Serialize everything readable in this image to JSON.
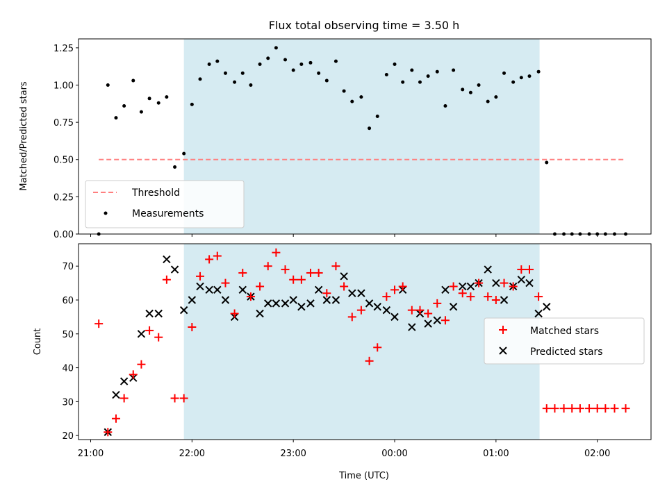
{
  "title": "Flux total observing time = 3.50 h",
  "chart_data": [
    {
      "type": "scatter",
      "ylabel": "Matched/Predicted stars",
      "ylim": [
        0.0,
        1.31
      ],
      "xlim_hours": [
        20.88,
        26.53
      ],
      "yticks": [
        "0.00",
        "0.25",
        "0.50",
        "0.75",
        "1.00",
        "1.25"
      ],
      "ytick_values": [
        0.0,
        0.25,
        0.5,
        0.75,
        1.0,
        1.25
      ],
      "threshold": {
        "name": "Threshold",
        "value": 0.5,
        "x": [
          21.08,
          26.28
        ],
        "color": "#ff7f7f"
      },
      "highlight_span_hours": [
        21.92,
        25.43
      ],
      "highlight_color": "#add8e6",
      "legend": {
        "placement": "lower-left",
        "entries": [
          "Threshold",
          "Measurements"
        ]
      },
      "series": [
        {
          "name": "Measurements",
          "marker": "dot",
          "color": "#000000",
          "x": [
            21.08,
            21.17,
            21.25,
            21.33,
            21.42,
            21.5,
            21.58,
            21.67,
            21.75,
            21.83,
            21.92,
            22.0,
            22.08,
            22.17,
            22.25,
            22.33,
            22.42,
            22.5,
            22.58,
            22.67,
            22.75,
            22.83,
            22.92,
            23.0,
            23.08,
            23.17,
            23.25,
            23.33,
            23.42,
            23.5,
            23.58,
            23.67,
            23.75,
            23.83,
            23.92,
            24.0,
            24.08,
            24.17,
            24.25,
            24.33,
            24.42,
            24.5,
            24.58,
            24.67,
            24.75,
            24.83,
            24.92,
            25.0,
            25.08,
            25.17,
            25.25,
            25.33,
            25.42,
            25.5,
            25.58,
            25.67,
            25.75,
            25.83,
            25.92,
            26.0,
            26.08,
            26.17,
            26.28
          ],
          "y": [
            0.0,
            1.0,
            0.78,
            0.86,
            1.03,
            0.82,
            0.91,
            0.88,
            0.92,
            0.45,
            0.54,
            0.87,
            1.04,
            1.14,
            1.16,
            1.08,
            1.02,
            1.08,
            1.0,
            1.14,
            1.18,
            1.25,
            1.17,
            1.1,
            1.14,
            1.15,
            1.08,
            1.03,
            1.16,
            0.96,
            0.89,
            0.92,
            0.71,
            0.79,
            1.07,
            1.14,
            1.02,
            1.1,
            1.02,
            1.06,
            1.09,
            0.86,
            1.1,
            0.97,
            0.95,
            1.0,
            0.89,
            0.92,
            1.08,
            1.02,
            1.05,
            1.06,
            1.09,
            0.48,
            0.0,
            0.0,
            0.0,
            0.0,
            0.0,
            0.0,
            0.0,
            0.0,
            0.0
          ]
        }
      ]
    },
    {
      "type": "scatter",
      "ylabel": "Count",
      "xlabel": "Time (UTC)",
      "ylim": [
        18.8,
        76.6
      ],
      "xlim_hours": [
        20.88,
        26.53
      ],
      "yticks": [
        "20",
        "30",
        "40",
        "50",
        "60",
        "70"
      ],
      "ytick_values": [
        20,
        30,
        40,
        50,
        60,
        70
      ],
      "xticks": [
        "21:00",
        "22:00",
        "23:00",
        "00:00",
        "01:00",
        "02:00"
      ],
      "xtick_values_hours": [
        21,
        22,
        23,
        24,
        25,
        26
      ],
      "highlight_span_hours": [
        21.92,
        25.43
      ],
      "legend": {
        "placement": "center-right",
        "entries": [
          "Matched stars",
          "Predicted stars"
        ]
      },
      "series": [
        {
          "name": "Matched stars",
          "marker": "plus",
          "color": "#ff0000",
          "x": [
            21.08,
            21.17,
            21.25,
            21.33,
            21.42,
            21.5,
            21.58,
            21.67,
            21.75,
            21.83,
            21.92,
            22.0,
            22.08,
            22.17,
            22.25,
            22.33,
            22.42,
            22.5,
            22.58,
            22.67,
            22.75,
            22.83,
            22.92,
            23.0,
            23.08,
            23.17,
            23.25,
            23.33,
            23.42,
            23.5,
            23.58,
            23.67,
            23.75,
            23.83,
            23.92,
            24.0,
            24.08,
            24.17,
            24.25,
            24.33,
            24.42,
            24.5,
            24.58,
            24.67,
            24.75,
            24.83,
            24.92,
            25.0,
            25.08,
            25.17,
            25.25,
            25.33,
            25.42,
            25.5,
            25.58,
            25.67,
            25.75,
            25.83,
            25.92,
            26.0,
            26.08,
            26.17,
            26.28
          ],
          "y": [
            53,
            21,
            25,
            31,
            38,
            41,
            51,
            49,
            66,
            31,
            31,
            52,
            67,
            72,
            73,
            65,
            56,
            68,
            61,
            64,
            70,
            74,
            69,
            66,
            66,
            68,
            68,
            62,
            70,
            64,
            55,
            57,
            42,
            46,
            61,
            63,
            64,
            57,
            57,
            56,
            59,
            54,
            64,
            62,
            61,
            65,
            61,
            60,
            65,
            64,
            69,
            69,
            61,
            28,
            28,
            28,
            28,
            28,
            28,
            28,
            28,
            28,
            28
          ]
        },
        {
          "name": "Predicted stars",
          "marker": "x",
          "color": "#000000",
          "x": [
            21.17,
            21.25,
            21.33,
            21.42,
            21.5,
            21.58,
            21.67,
            21.75,
            21.83,
            21.92,
            22.0,
            22.08,
            22.17,
            22.25,
            22.33,
            22.42,
            22.5,
            22.58,
            22.67,
            22.75,
            22.83,
            22.92,
            23.0,
            23.08,
            23.17,
            23.25,
            23.33,
            23.42,
            23.5,
            23.58,
            23.67,
            23.75,
            23.83,
            23.92,
            24.0,
            24.08,
            24.17,
            24.25,
            24.33,
            24.42,
            24.5,
            24.58,
            24.67,
            24.75,
            24.83,
            24.92,
            25.0,
            25.08,
            25.17,
            25.25,
            25.33,
            25.42,
            25.5
          ],
          "y": [
            21,
            32,
            36,
            37,
            50,
            56,
            56,
            72,
            69,
            57,
            60,
            64,
            63,
            63,
            60,
            55,
            63,
            61,
            56,
            59,
            59,
            59,
            60,
            58,
            59,
            63,
            60,
            60,
            67,
            62,
            62,
            59,
            58,
            57,
            55,
            63,
            52,
            56,
            53,
            54,
            63,
            58,
            64,
            64,
            65,
            69,
            65,
            60,
            64,
            66,
            65,
            56,
            58
          ]
        }
      ]
    }
  ]
}
